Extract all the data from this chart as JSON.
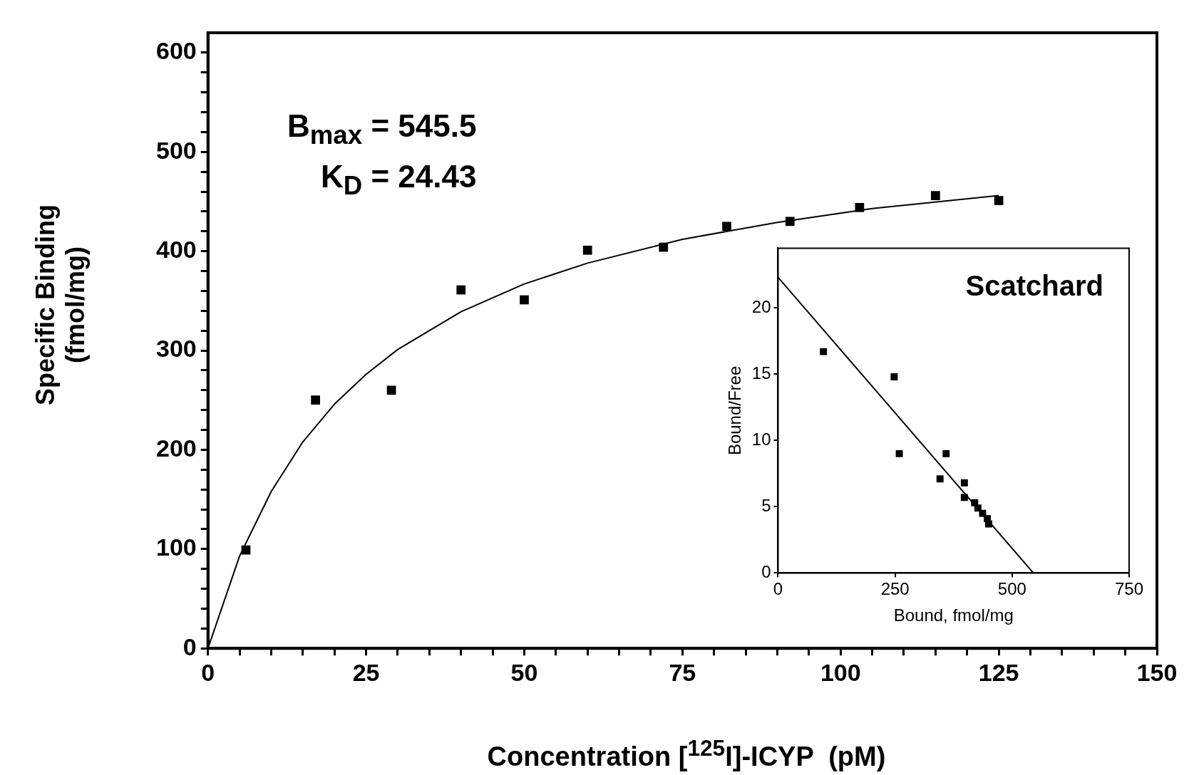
{
  "chart_data": [
    {
      "type": "scatter",
      "xlabel": "Concentration [$^{125}$I]-ICYP  (pM)",
      "ylabel": "Specific Binding\n(fmol/mg)",
      "annotations": [
        "B$_{max}$ = 545.5",
        "K$_{D}$ = 24.43"
      ],
      "xlim": [
        0,
        150
      ],
      "xticks": [
        0,
        {
          "value": 5,
          "label": null
        },
        {
          "value": 10,
          "label": null
        },
        {
          "value": 15,
          "label": null
        },
        {
          "value": 20,
          "label": null
        },
        25,
        {
          "value": 30,
          "label": null
        },
        {
          "value": 35,
          "label": null
        },
        {
          "value": 40,
          "label": null
        },
        {
          "value": 45,
          "label": null
        },
        50,
        {
          "value": 55,
          "label": null
        },
        {
          "value": 60,
          "label": null
        },
        {
          "value": 65,
          "label": null
        },
        {
          "value": 70,
          "label": null
        },
        75,
        {
          "value": 80,
          "label": null
        },
        {
          "value": 85,
          "label": null
        },
        {
          "value": 90,
          "label": null
        },
        {
          "value": 95,
          "label": null
        },
        100,
        {
          "value": 105,
          "label": null
        },
        {
          "value": 110,
          "label": null
        },
        {
          "value": 115,
          "label": null
        },
        {
          "value": 120,
          "label": null
        },
        125,
        {
          "value": 130,
          "label": null
        },
        {
          "value": 135,
          "label": null
        },
        {
          "value": 140,
          "label": null
        },
        {
          "value": 145,
          "label": null
        },
        150
      ],
      "ylim": [
        0,
        620
      ],
      "yticks": [
        0,
        {
          "value": 20,
          "label": null
        },
        {
          "value": 40,
          "label": null
        },
        {
          "value": 60,
          "label": null
        },
        {
          "value": 80,
          "label": null
        },
        100,
        {
          "value": 120,
          "label": null
        },
        {
          "value": 140,
          "label": null
        },
        {
          "value": 160,
          "label": null
        },
        {
          "value": 180,
          "label": null
        },
        200,
        {
          "value": 220,
          "label": null
        },
        {
          "value": 240,
          "label": null
        },
        {
          "value": 260,
          "label": null
        },
        {
          "value": 280,
          "label": null
        },
        300,
        {
          "value": 320,
          "label": null
        },
        {
          "value": 340,
          "label": null
        },
        {
          "value": 360,
          "label": null
        },
        {
          "value": 380,
          "label": null
        },
        400,
        {
          "value": 420,
          "label": null
        },
        {
          "value": 440,
          "label": null
        },
        {
          "value": 460,
          "label": null
        },
        {
          "value": 480,
          "label": null
        },
        500,
        {
          "value": 520,
          "label": null
        },
        {
          "value": 540,
          "label": null
        },
        {
          "value": 560,
          "label": null
        },
        {
          "value": 580,
          "label": null
        },
        600
      ],
      "series": [
        {
          "marker": "square",
          "color": "#000000",
          "x": [
            6,
            17,
            29,
            40,
            50,
            60,
            72,
            82,
            92,
            103,
            115,
            125
          ],
          "values": [
            99,
            250,
            260,
            361,
            351,
            401,
            404,
            425,
            430,
            444,
            456,
            451
          ]
        },
        {
          "type": "line",
          "marker": "none",
          "color": "#000000",
          "x": [
            0,
            5,
            10,
            15,
            20,
            25,
            30,
            40,
            50,
            60,
            75,
            90,
            105,
            125
          ],
          "values": [
            0,
            93,
            158,
            208,
            246,
            276,
            301,
            339,
            367,
            388,
            412,
            429,
            443,
            456
          ]
        }
      ]
    },
    {
      "type": "scatter",
      "title": "Scatchard",
      "xlabel": "Bound, fmol/mg",
      "ylabel": "Bound/Free",
      "xlim": [
        0,
        750
      ],
      "xticks": [
        0,
        250,
        500,
        750
      ],
      "ylim": [
        0,
        24.5
      ],
      "yticks": [
        0,
        5,
        10,
        15,
        20
      ],
      "series": [
        {
          "marker": "square",
          "color": "#000000",
          "x": [
            97,
            248,
            259,
            359,
            346,
            398,
            398,
            420,
            427,
            437,
            447,
            450
          ],
          "values": [
            16.7,
            14.8,
            9.0,
            9.0,
            7.1,
            6.8,
            5.7,
            5.3,
            4.9,
            4.5,
            4.1,
            3.7
          ]
        },
        {
          "type": "line",
          "marker": "none",
          "color": "#000000",
          "x": [
            0,
            545.5
          ],
          "values": [
            22.3,
            0
          ]
        }
      ]
    }
  ]
}
